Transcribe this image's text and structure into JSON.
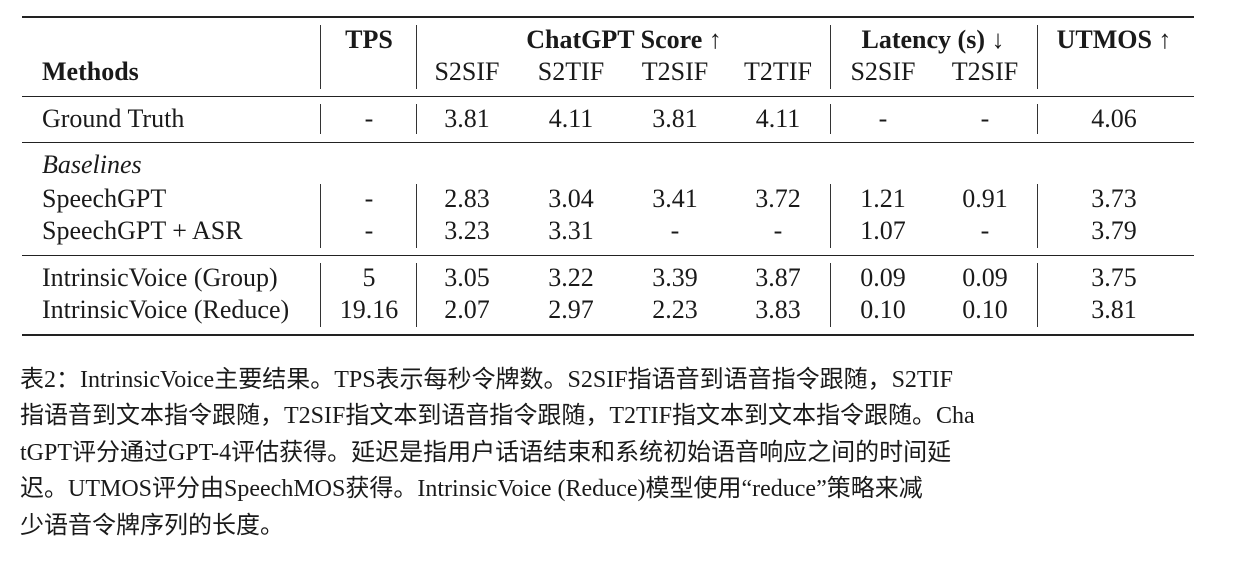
{
  "table": {
    "headers": {
      "methods": "Methods",
      "tps": "TPS",
      "chatgpt_group": "ChatGPT Score ↑",
      "latency_group": "Latency (s) ↓",
      "utmos": "UTMOS ↑",
      "sub": [
        "S2SIF",
        "S2TIF",
        "T2SIF",
        "T2TIF",
        "S2SIF",
        "T2SIF"
      ]
    },
    "ground_truth": {
      "method": "Ground Truth",
      "tps": "-",
      "s2sif": "3.81",
      "s2tif": "4.11",
      "t2sif": "3.81",
      "t2tif": "4.11",
      "lat_s2sif": "-",
      "lat_t2sif": "-",
      "utmos": "4.06"
    },
    "baselines_label": "Baselines",
    "speechgpt": {
      "method": "SpeechGPT",
      "tps": "-",
      "s2sif": "2.83",
      "s2tif": "3.04",
      "t2sif": "3.41",
      "t2tif": "3.72",
      "lat_s2sif": "1.21",
      "lat_t2sif": "0.91",
      "utmos": "3.73"
    },
    "speechgpt_asr": {
      "method": "SpeechGPT + ASR",
      "tps": "-",
      "s2sif": "3.23",
      "s2tif": "3.31",
      "t2sif": "-",
      "t2tif": "-",
      "lat_s2sif": "1.07",
      "lat_t2sif": "-",
      "utmos": "3.79"
    },
    "iv_group": {
      "method": "IntrinsicVoice (Group)",
      "tps": "5",
      "s2sif": "3.05",
      "s2tif": "3.22",
      "t2sif": "3.39",
      "t2tif": "3.87",
      "lat_s2sif": "0.09",
      "lat_t2sif": "0.09",
      "utmos": "3.75"
    },
    "iv_reduce": {
      "method": "IntrinsicVoice (Reduce)",
      "tps": "19.16",
      "s2sif": "2.07",
      "s2tif": "2.97",
      "t2sif": "2.23",
      "t2tif": "3.83",
      "lat_s2sif": "0.10",
      "lat_t2sif": "0.10",
      "utmos": "3.81"
    }
  },
  "caption": {
    "lines": [
      "表2：IntrinsicVoice主要结果。TPS表示每秒令牌数。S2SIF指语音到语音指令跟随，S2TIF",
      "指语音到文本指令跟随，T2SIF指文本到语音指令跟随，T2TIF指文本到文本指令跟随。Cha",
      "tGPT评分通过GPT-4评估获得。延迟是指用户话语结束和系统初始语音响应之间的时间延",
      "迟。UTMOS评分由SpeechMOS获得。IntrinsicVoice (Reduce)模型使用“reduce”策略来减",
      "少语音令牌序列的长度。"
    ]
  }
}
